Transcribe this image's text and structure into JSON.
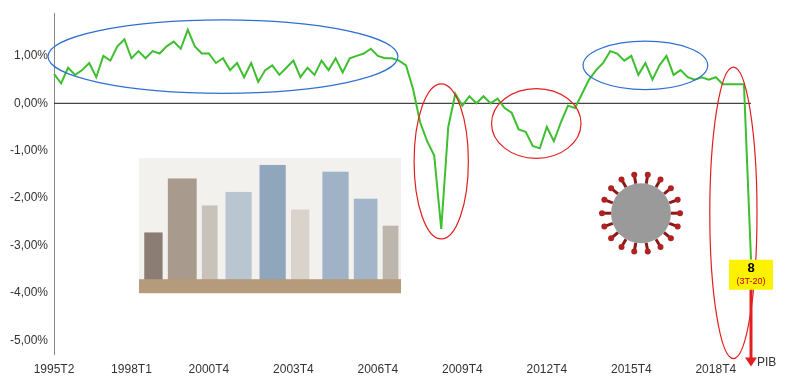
{
  "chart_data": {
    "type": "line",
    "categories": [
      "1995T2",
      null,
      null,
      null,
      null,
      null,
      null,
      null,
      null,
      null,
      null,
      "1998T1",
      null,
      null,
      null,
      null,
      null,
      null,
      null,
      null,
      null,
      null,
      "2000T4",
      null,
      null,
      null,
      null,
      null,
      null,
      null,
      null,
      null,
      null,
      null,
      "2003T4",
      null,
      null,
      null,
      null,
      null,
      null,
      null,
      null,
      null,
      null,
      null,
      "2006T4",
      null,
      null,
      null,
      null,
      null,
      null,
      null,
      null,
      null,
      null,
      null,
      "2009T4",
      null,
      null,
      null,
      null,
      null,
      null,
      null,
      null,
      null,
      null,
      null,
      "2012T4",
      null,
      null,
      null,
      null,
      null,
      null,
      null,
      null,
      null,
      null,
      null,
      "2015T4",
      null,
      null,
      null,
      null,
      null,
      null,
      null,
      null,
      null,
      null,
      null,
      "2018T4",
      null,
      null,
      null,
      null,
      null
    ],
    "values": [
      0.62,
      0.42,
      0.75,
      0.6,
      0.7,
      0.85,
      0.55,
      1.0,
      0.9,
      1.2,
      1.35,
      0.95,
      1.1,
      0.95,
      1.1,
      1.05,
      1.2,
      1.3,
      1.15,
      1.55,
      1.2,
      1.05,
      1.05,
      0.85,
      0.95,
      0.7,
      0.85,
      0.55,
      0.85,
      0.45,
      0.7,
      0.8,
      0.6,
      0.75,
      0.9,
      0.55,
      0.75,
      0.6,
      0.9,
      0.7,
      0.95,
      0.65,
      0.95,
      1.0,
      1.05,
      1.15,
      1.0,
      0.95,
      0.95,
      0.9,
      0.8,
      0.3,
      -0.4,
      -0.8,
      -1.1,
      -2.65,
      -0.5,
      0.2,
      -0.05,
      0.15,
      0.0,
      0.15,
      0.0,
      0.1,
      -0.1,
      -0.2,
      -0.55,
      -0.6,
      -0.9,
      -0.95,
      -0.5,
      -0.8,
      -0.4,
      -0.05,
      -0.1,
      0.2,
      0.5,
      0.7,
      0.85,
      1.1,
      1.05,
      0.9,
      1.0,
      0.6,
      0.85,
      0.5,
      0.8,
      1.0,
      0.6,
      0.7,
      0.55,
      0.5,
      0.55,
      0.5,
      0.55,
      0.4,
      0.4,
      0.4,
      0.4,
      -3.3
    ],
    "color": "#3dbf2f",
    "ylim": [
      -5.3,
      1.9
    ],
    "yticks": [
      {
        "value": 1,
        "label": "1,00%"
      },
      {
        "value": 0,
        "label": "0,00%"
      },
      {
        "value": -1,
        "label": "-1,00%"
      },
      {
        "value": -2,
        "label": "-2,00%"
      },
      {
        "value": -3,
        "label": "-3,00%"
      },
      {
        "value": -4,
        "label": "-4,00%"
      },
      {
        "value": -5,
        "label": "-5,00%"
      }
    ],
    "annotations": [
      "8",
      "(3T-20)",
      "PIB"
    ],
    "grid": false
  }
}
